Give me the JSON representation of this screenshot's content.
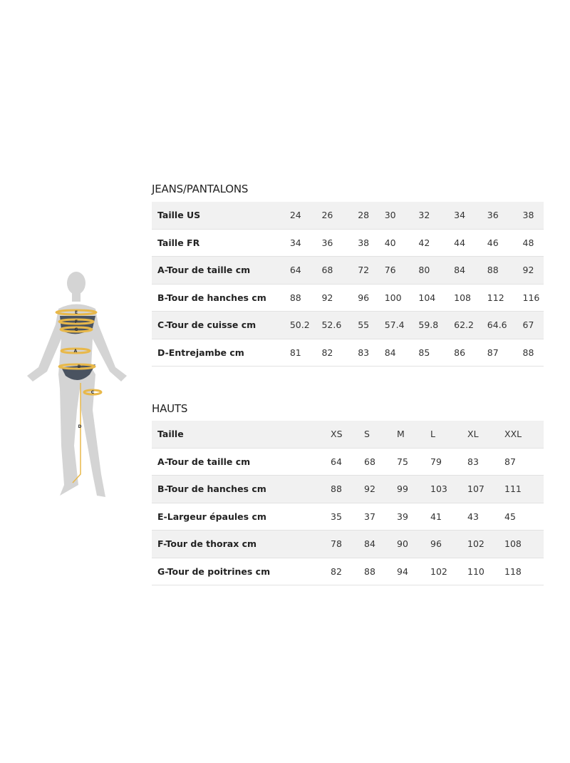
{
  "figure": {
    "labels": [
      "E",
      "F",
      "G",
      "A",
      "B",
      "C",
      "D"
    ],
    "colors": {
      "body": "#d4d4d4",
      "swimsuit": "#4a5360",
      "tape": "#e8b84a"
    }
  },
  "jeans": {
    "title": "JEANS/PANTALONS",
    "rows": [
      {
        "label": "Taille US",
        "values": [
          "24",
          "26",
          "28",
          "30",
          "32",
          "34",
          "36",
          "38"
        ]
      },
      {
        "label": "Taille FR",
        "values": [
          "34",
          "36",
          "38",
          "40",
          "42",
          "44",
          "46",
          "48"
        ]
      },
      {
        "label": "A-Tour de taille cm",
        "values": [
          "64",
          "68",
          "72",
          "76",
          "80",
          "84",
          "88",
          "92"
        ]
      },
      {
        "label": "B-Tour de hanches cm",
        "values": [
          "88",
          "92",
          "96",
          "100",
          "104",
          "108",
          "112",
          "116"
        ]
      },
      {
        "label": "C-Tour de cuisse cm",
        "values": [
          "50.2",
          "52.6",
          "55",
          "57.4",
          "59.8",
          "62.2",
          "64.6",
          "67"
        ]
      },
      {
        "label": "D-Entrejambe cm",
        "values": [
          "81",
          "82",
          "83",
          "84",
          "85",
          "86",
          "87",
          "88"
        ]
      }
    ]
  },
  "hauts": {
    "title": "HAUTS",
    "rows": [
      {
        "label": "Taille",
        "values": [
          "XS",
          "S",
          "M",
          "L",
          "XL",
          "XXL"
        ]
      },
      {
        "label": "A-Tour de taille cm",
        "values": [
          "64",
          "68",
          "75",
          "79",
          "83",
          "87"
        ]
      },
      {
        "label": "B-Tour de hanches cm",
        "values": [
          "88",
          "92",
          "99",
          "103",
          "107",
          "111"
        ]
      },
      {
        "label": "E-Largeur épaules cm",
        "values": [
          "35",
          "37",
          "39",
          "41",
          "43",
          "45"
        ]
      },
      {
        "label": "F-Tour de thorax cm",
        "values": [
          "78",
          "84",
          "90",
          "96",
          "102",
          "108"
        ]
      },
      {
        "label": "G-Tour de poitrines cm",
        "values": [
          "82",
          "88",
          "94",
          "102",
          "110",
          "118"
        ]
      }
    ]
  }
}
